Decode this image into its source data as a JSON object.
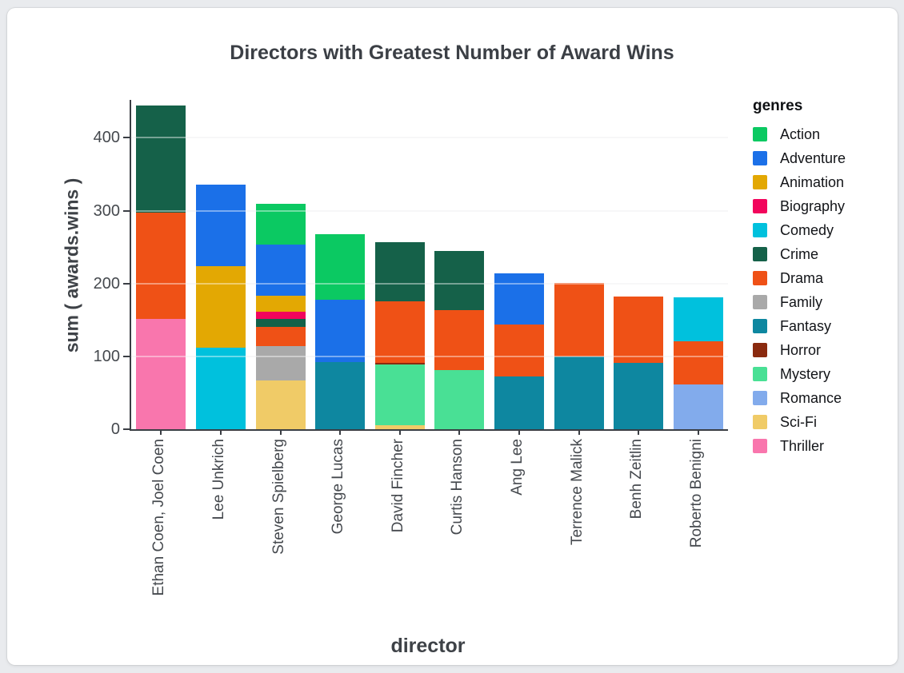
{
  "title": "Directors with Greatest Number of Award Wins",
  "chart_data": {
    "type": "bar",
    "stacked": true,
    "title": "Directors with Greatest Number of Award Wins",
    "xlabel": "director",
    "ylabel": "sum ( awards.wins )",
    "legend_title": "genres",
    "legend_position": "right",
    "grid": true,
    "yticks": [
      0,
      100,
      200,
      300,
      400
    ],
    "ylim": [
      0,
      452
    ],
    "categories": [
      "Ethan Coen, Joel Coen",
      "Lee Unkrich",
      "Steven Spielberg",
      "George Lucas",
      "David Fincher",
      "Curtis Hanson",
      "Ang Lee",
      "Terrence Malick",
      "Benh Zeitlin",
      "Roberto Benigni"
    ],
    "series": [
      {
        "name": "Action",
        "color": "#0bc962",
        "values": [
          0,
          0,
          56,
          90,
          0,
          0,
          0,
          0,
          0,
          0
        ]
      },
      {
        "name": "Adventure",
        "color": "#1b70e8",
        "values": [
          0,
          112,
          70,
          86,
          0,
          0,
          70,
          0,
          0,
          0
        ]
      },
      {
        "name": "Animation",
        "color": "#e3a803",
        "values": [
          0,
          112,
          22,
          0,
          0,
          0,
          0,
          0,
          0,
          0
        ]
      },
      {
        "name": "Biography",
        "color": "#f2055c",
        "values": [
          0,
          0,
          10,
          0,
          0,
          0,
          0,
          0,
          0,
          0
        ]
      },
      {
        "name": "Comedy",
        "color": "#00c1dd",
        "values": [
          0,
          112,
          0,
          0,
          0,
          0,
          0,
          0,
          0,
          60
        ]
      },
      {
        "name": "Crime",
        "color": "#156149",
        "values": [
          147,
          0,
          11,
          0,
          81,
          82,
          0,
          0,
          0,
          0
        ]
      },
      {
        "name": "Drama",
        "color": "#ef5116",
        "values": [
          146,
          0,
          26,
          0,
          85,
          82,
          72,
          101,
          91,
          60
        ]
      },
      {
        "name": "Family",
        "color": "#a9a9a9",
        "values": [
          0,
          0,
          47,
          0,
          0,
          0,
          0,
          0,
          0,
          0
        ]
      },
      {
        "name": "Fantasy",
        "color": "#0e87a0",
        "values": [
          0,
          0,
          0,
          92,
          0,
          0,
          72,
          100,
          91,
          0
        ]
      },
      {
        "name": "Horror",
        "color": "#8a2a0f",
        "values": [
          0,
          0,
          0,
          0,
          2,
          0,
          0,
          0,
          0,
          0
        ]
      },
      {
        "name": "Mystery",
        "color": "#49e095",
        "values": [
          0,
          0,
          0,
          0,
          83,
          81,
          0,
          0,
          0,
          0
        ]
      },
      {
        "name": "Romance",
        "color": "#82abec",
        "values": [
          0,
          0,
          0,
          0,
          0,
          0,
          0,
          0,
          0,
          61
        ]
      },
      {
        "name": "Sci-Fi",
        "color": "#f0cb67",
        "values": [
          0,
          0,
          67,
          0,
          6,
          0,
          0,
          0,
          0,
          0
        ]
      },
      {
        "name": "Thriller",
        "color": "#f976ad",
        "values": [
          151,
          0,
          0,
          0,
          0,
          0,
          0,
          0,
          0,
          0
        ]
      }
    ]
  }
}
